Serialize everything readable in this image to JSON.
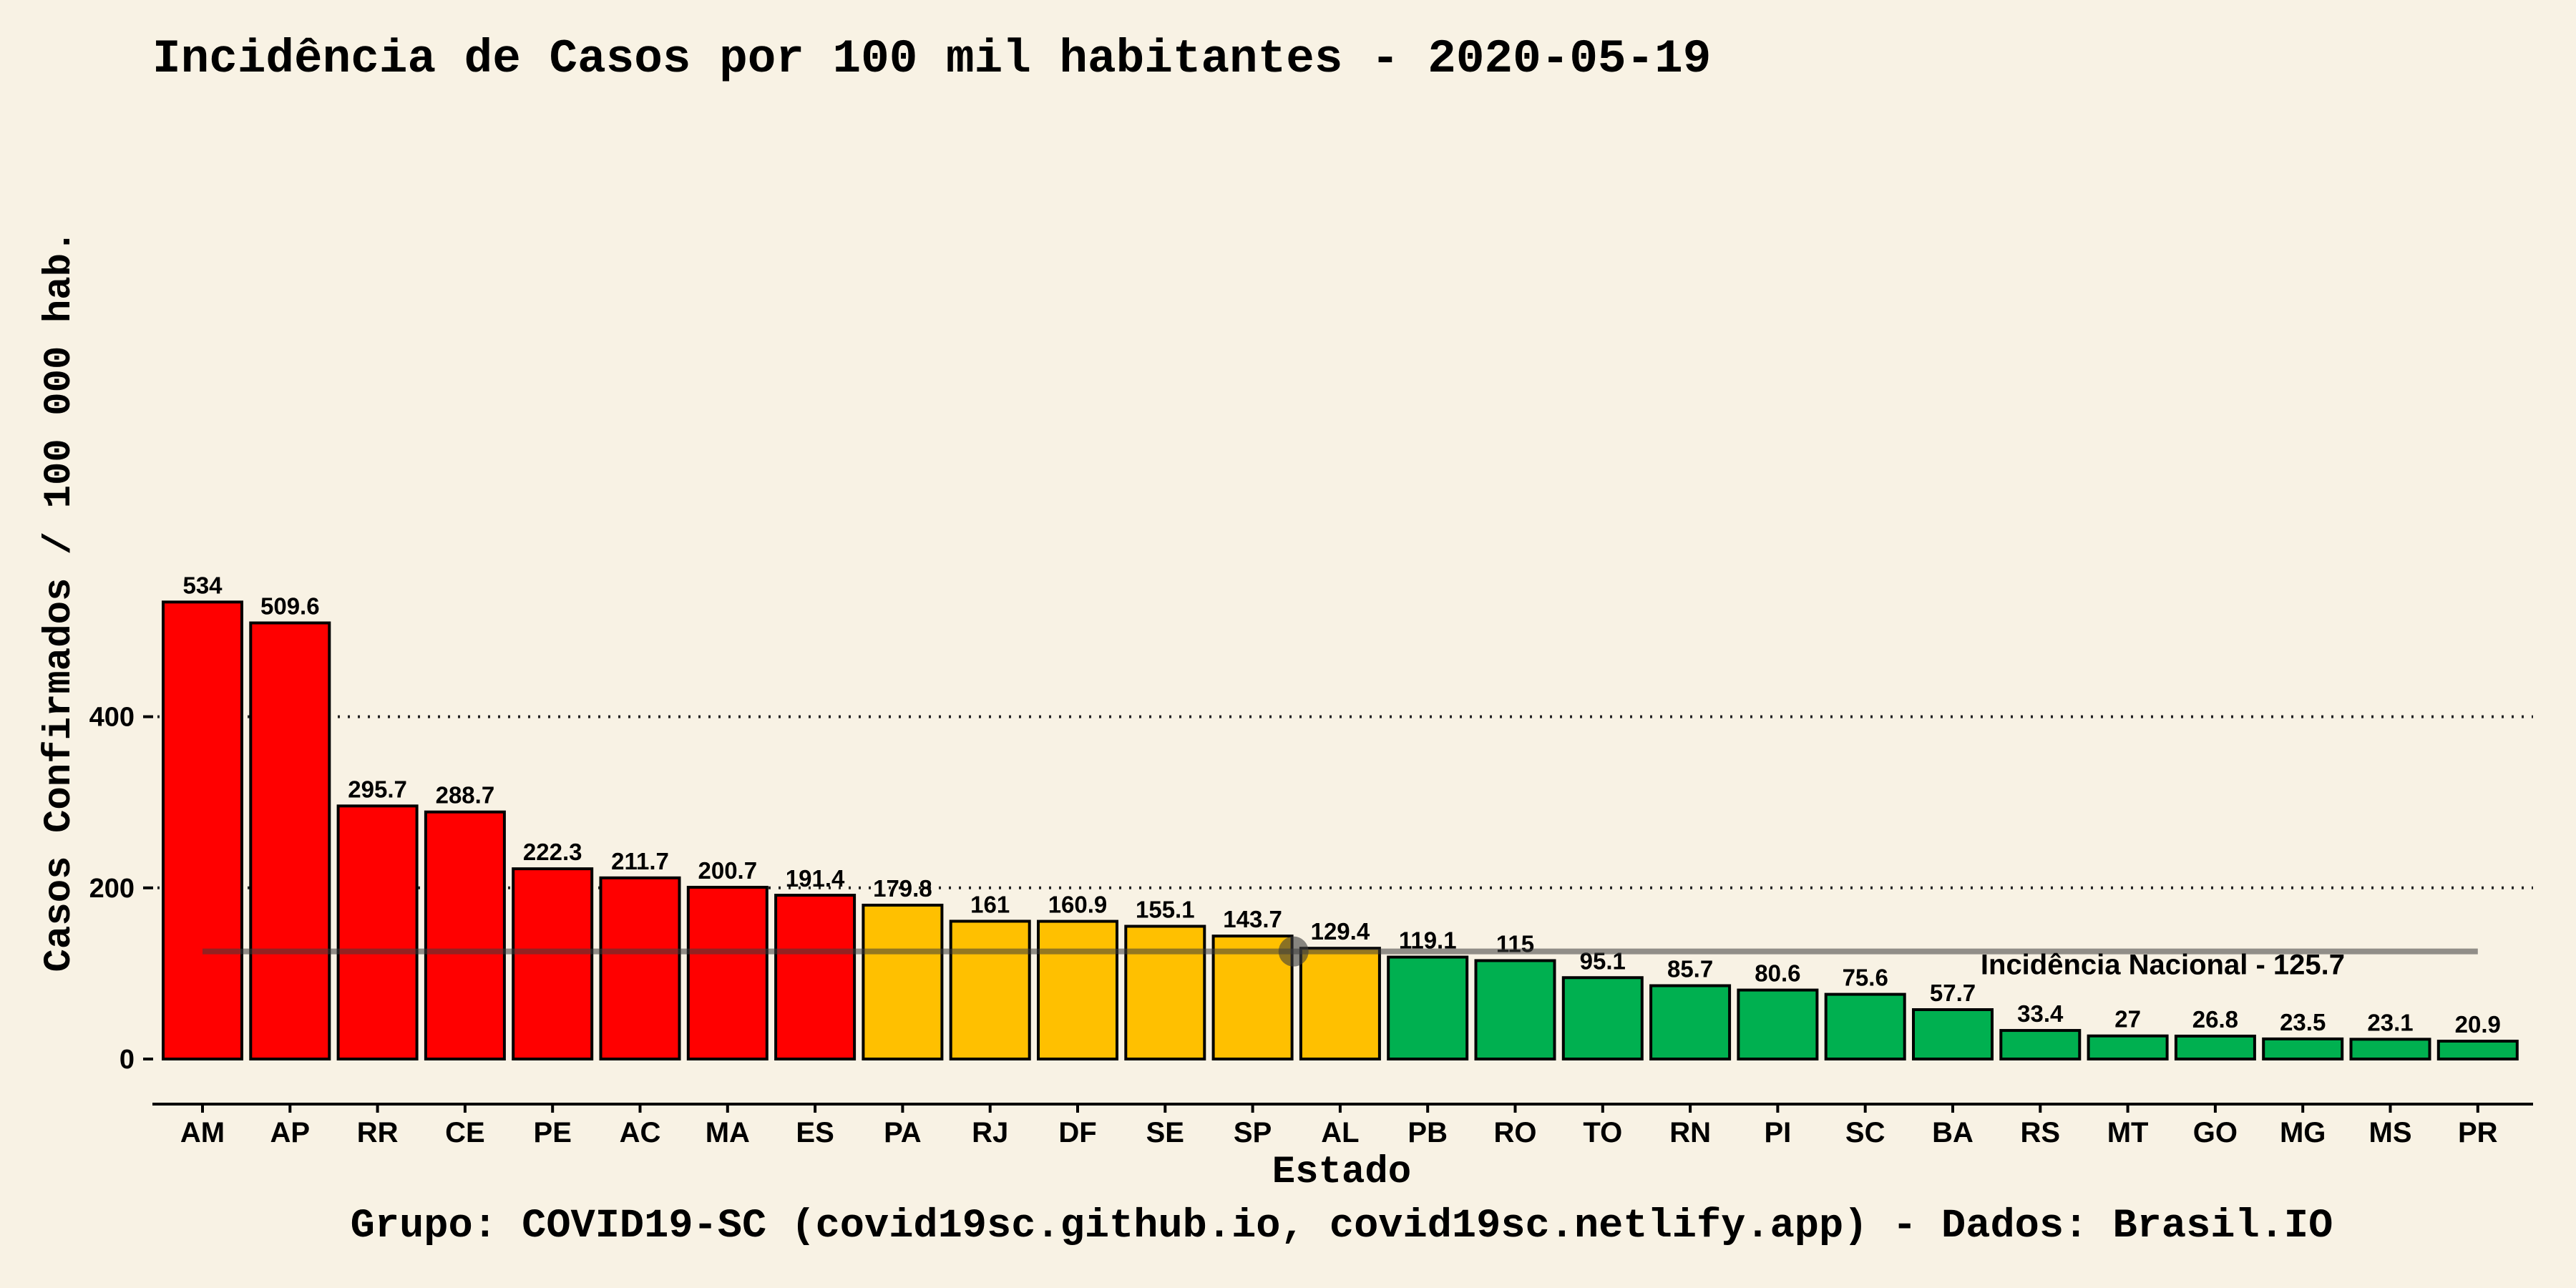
{
  "chart_data": {
    "type": "bar",
    "title": "Incidência de Casos por 100 mil habitantes -  2020-05-19",
    "xlabel": "Estado",
    "ylabel": "Casos Confirmados / 100 000 hab.",
    "caption": "Grupo: COVID19-SC (covid19sc.github.io, covid19sc.netlify.app)   -  Dados: Brasil.IO",
    "categories": [
      "AM",
      "AP",
      "RR",
      "CE",
      "PE",
      "AC",
      "MA",
      "ES",
      "PA",
      "RJ",
      "DF",
      "SE",
      "SP",
      "AL",
      "PB",
      "RO",
      "TO",
      "RN",
      "PI",
      "SC",
      "BA",
      "RS",
      "MT",
      "GO",
      "MG",
      "MS",
      "PR"
    ],
    "values": [
      534,
      509.6,
      295.7,
      288.7,
      222.3,
      211.7,
      200.7,
      191.4,
      179.8,
      161,
      160.9,
      155.1,
      143.7,
      129.4,
      119.1,
      115,
      95.1,
      85.7,
      80.6,
      75.6,
      57.7,
      33.4,
      27,
      26.8,
      23.5,
      23.1,
      20.9
    ],
    "data_labels": [
      "534",
      "509.6",
      "295.7",
      "288.7",
      "222.3",
      "211.7",
      "200.7",
      "191.4",
      "179.8",
      "161",
      "160.9",
      "155.1",
      "143.7",
      "129.4",
      "119.1",
      "115",
      "95.1",
      "85.7",
      "80.6",
      "75.6",
      "57.7",
      "33.4",
      "27",
      "26.8",
      "23.5",
      "23.1",
      "20.9"
    ],
    "bar_color_groups": [
      "red",
      "red",
      "red",
      "red",
      "red",
      "red",
      "red",
      "red",
      "yellow",
      "yellow",
      "yellow",
      "yellow",
      "yellow",
      "yellow",
      "green",
      "green",
      "green",
      "green",
      "green",
      "green",
      "green",
      "green",
      "green",
      "green",
      "green",
      "green",
      "green"
    ],
    "colors": {
      "red": "#ff0000",
      "yellow": "#ffc000",
      "green": "#00b050",
      "background": "#f8f2e4",
      "reference_line": "#7f7f7f"
    },
    "yticks": [
      0,
      200,
      400
    ],
    "ylim": [
      0,
      560
    ],
    "grid": "horizontal dotted at 200 and 400",
    "reference": {
      "label": "Incidência Nacional -  125.7",
      "value": 125.7,
      "marker_category": "SP"
    }
  }
}
